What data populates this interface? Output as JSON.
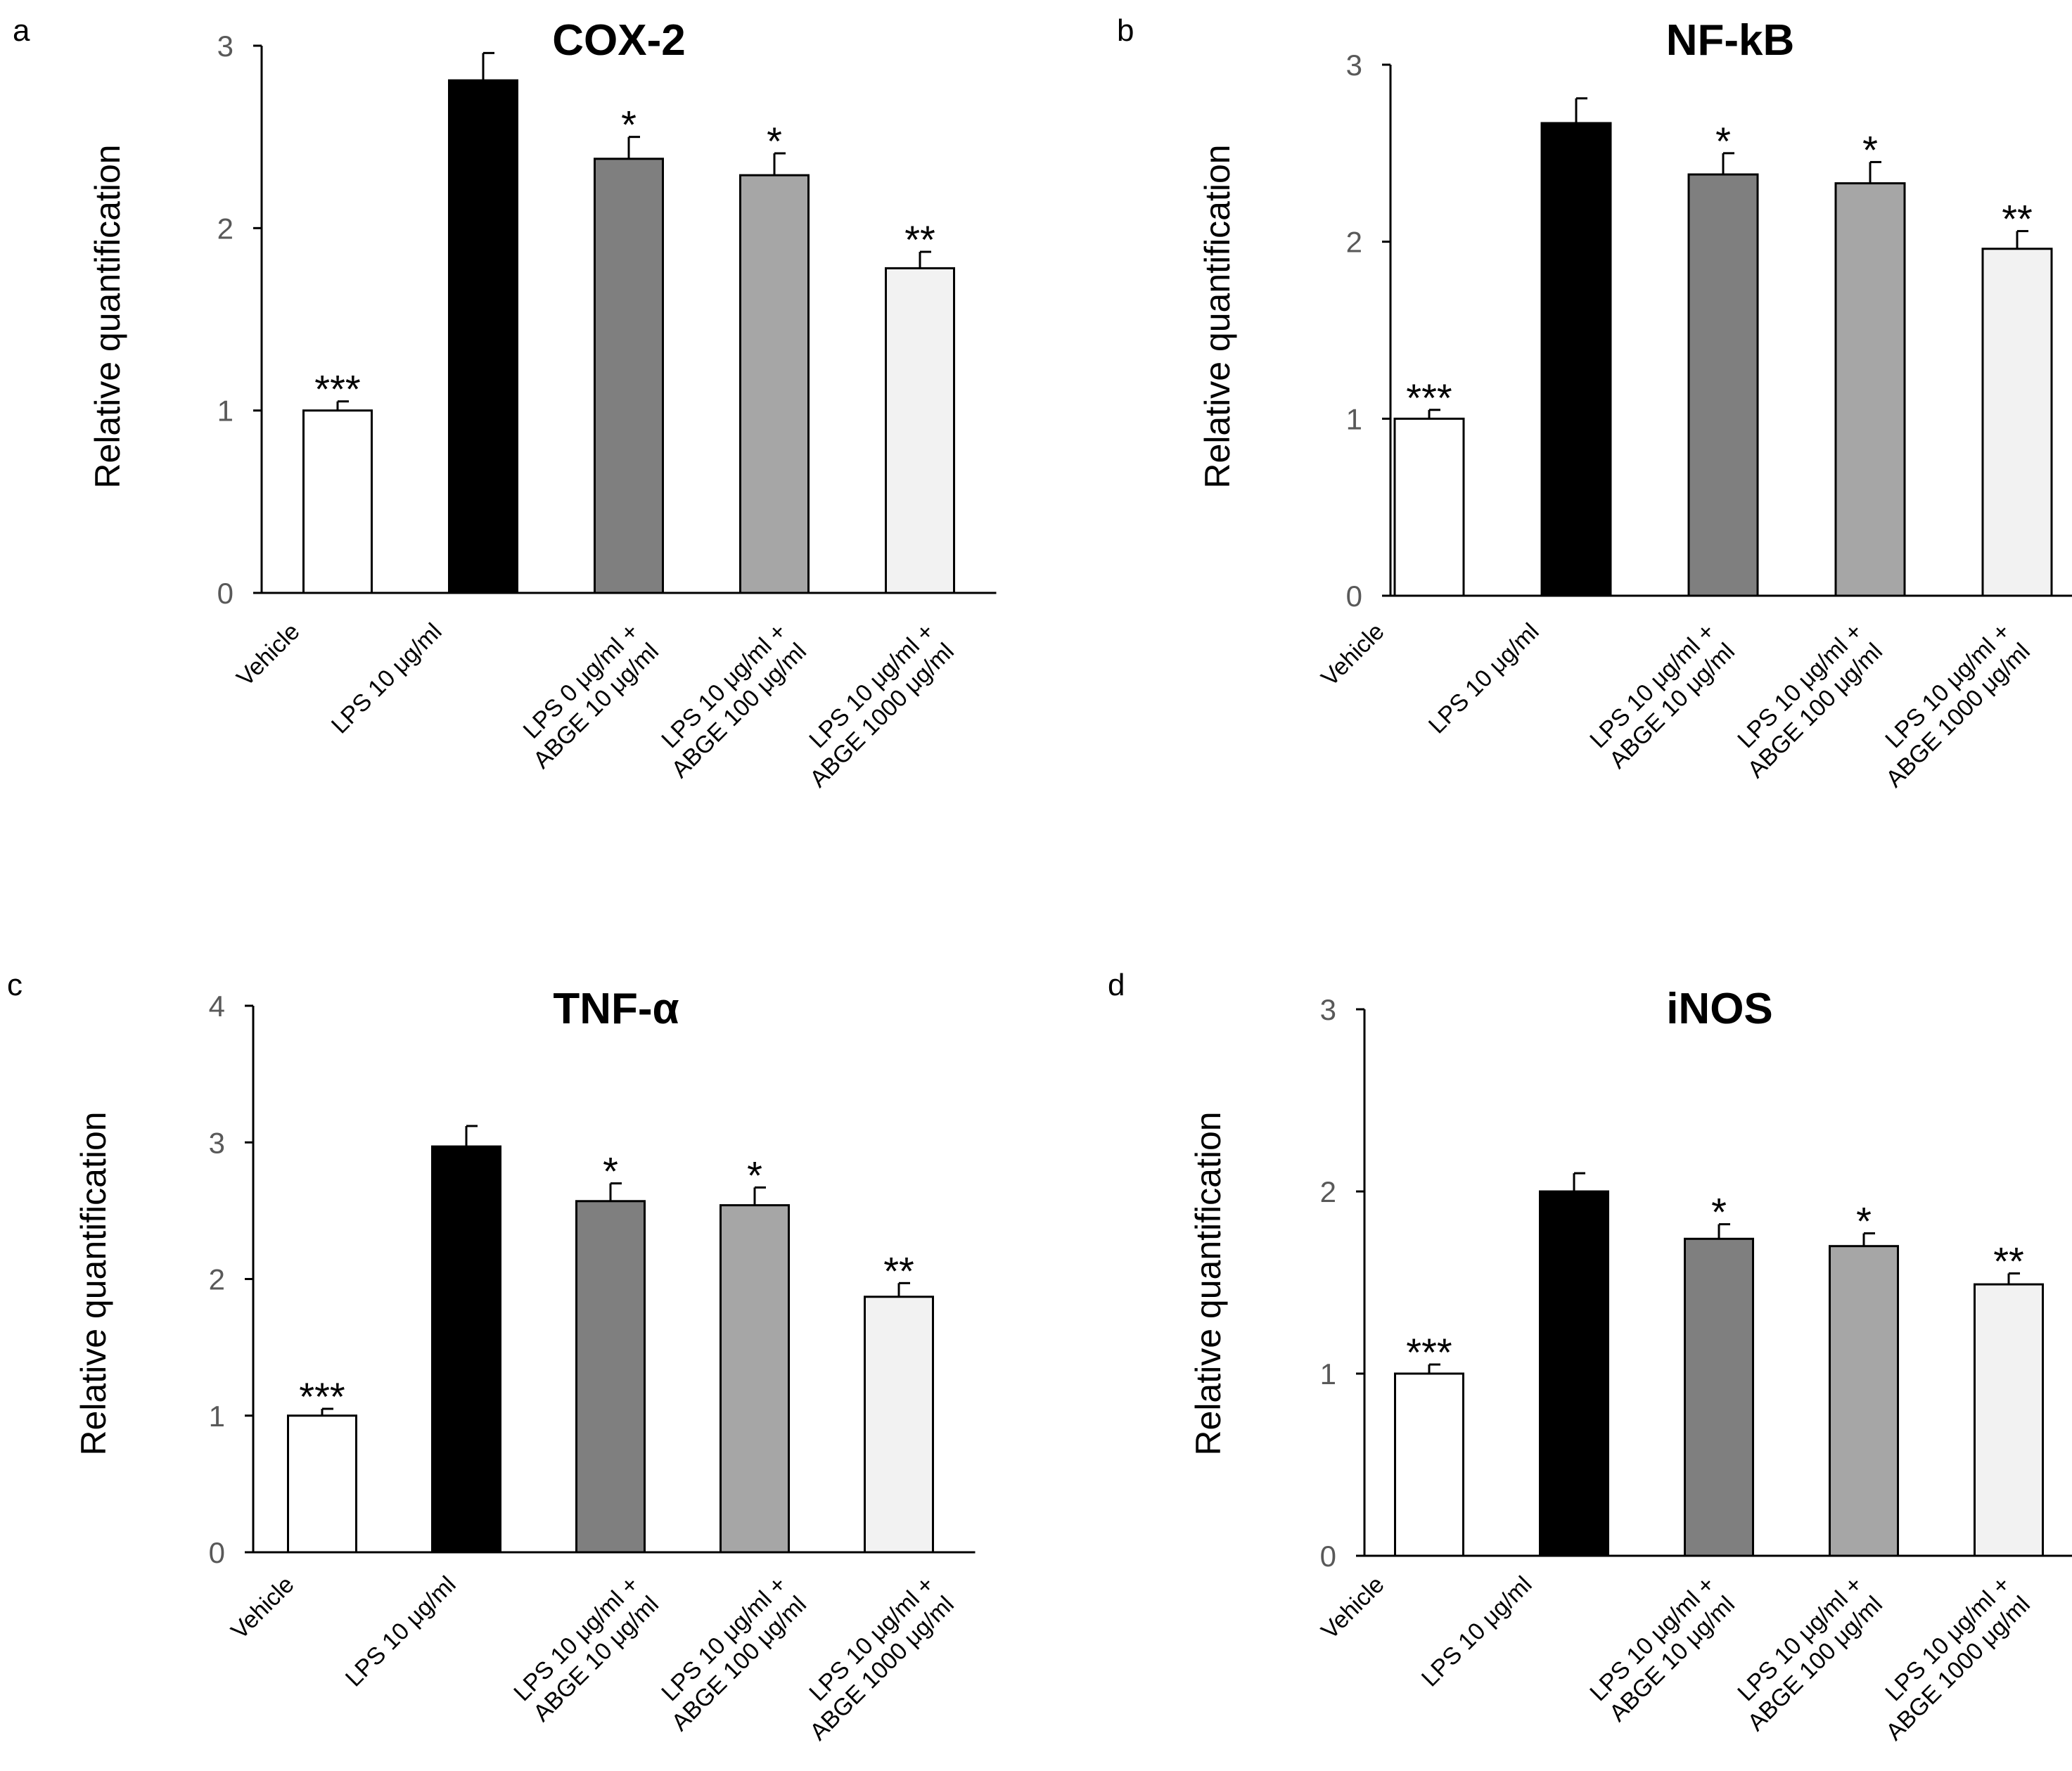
{
  "chart_data": [
    {
      "panel": "a",
      "type": "bar",
      "title": "COX-2",
      "ylabel": "Relative quantification",
      "xlabel": "",
      "ylim": [
        0,
        3
      ],
      "yticks": [
        0,
        1,
        2,
        3
      ],
      "categories": [
        [
          "Vehicle"
        ],
        [
          "LPS 10 μg/ml"
        ],
        [
          "LPS 0 μg/ml +",
          "ABGE 10 μg/ml"
        ],
        [
          "LPS 10 μg/ml +",
          "ABGE 100 μg/ml"
        ],
        [
          "LPS 10 μg/ml +",
          "ABGE 1000 μg/ml"
        ]
      ],
      "values": [
        1.0,
        2.81,
        2.38,
        2.29,
        1.78
      ],
      "errors": [
        0.05,
        0.15,
        0.12,
        0.12,
        0.09
      ],
      "significance": [
        "***",
        "",
        "*",
        "*",
        "**"
      ],
      "bar_colors": [
        "#ffffff",
        "#000000",
        "#7f7f7f",
        "#a6a6a6",
        "#f2f2f2"
      ]
    },
    {
      "panel": "b",
      "type": "bar",
      "title": "NF-kB",
      "ylabel": "Relative quantification",
      "xlabel": "",
      "ylim": [
        0,
        3
      ],
      "yticks": [
        0,
        1,
        2,
        3
      ],
      "categories": [
        [
          "Vehicle"
        ],
        [
          "LPS 10 μg/ml"
        ],
        [
          "LPS 10 μg/ml +",
          "ABGE 10 μg/ml"
        ],
        [
          "LPS 10 μg/ml +",
          "ABGE 100 μg/ml"
        ],
        [
          "LPS 10 μg/ml +",
          "ABGE 1000 μg/ml"
        ]
      ],
      "values": [
        1.0,
        2.67,
        2.38,
        2.33,
        1.96
      ],
      "errors": [
        0.05,
        0.14,
        0.12,
        0.12,
        0.1
      ],
      "significance": [
        "***",
        "",
        "*",
        "*",
        "**"
      ],
      "bar_colors": [
        "#ffffff",
        "#000000",
        "#7f7f7f",
        "#a6a6a6",
        "#f2f2f2"
      ]
    },
    {
      "panel": "c",
      "type": "bar",
      "title": "TNF-α",
      "ylabel": "Relative quantification",
      "xlabel": "",
      "ylim": [
        0,
        4
      ],
      "yticks": [
        0,
        1,
        2,
        3,
        4
      ],
      "categories": [
        [
          "Vehicle"
        ],
        [
          "LPS 10 μg/ml"
        ],
        [
          "LPS 10 μg/ml +",
          "ABGE 10 μg/ml"
        ],
        [
          "LPS 10 μg/ml +",
          "ABGE 100 μg/ml"
        ],
        [
          "LPS 10 μg/ml +",
          "ABGE 1000 μg/ml"
        ]
      ],
      "values": [
        1.0,
        2.97,
        2.57,
        2.54,
        1.87
      ],
      "errors": [
        0.05,
        0.15,
        0.13,
        0.13,
        0.1
      ],
      "significance": [
        "***",
        "",
        "*",
        "*",
        "**"
      ],
      "bar_colors": [
        "#ffffff",
        "#000000",
        "#7f7f7f",
        "#a6a6a6",
        "#f2f2f2"
      ]
    },
    {
      "panel": "d",
      "type": "bar",
      "title": "iNOS",
      "ylabel": "Relative quantification",
      "xlabel": "",
      "ylim": [
        0,
        3
      ],
      "yticks": [
        0,
        1,
        2,
        3
      ],
      "categories": [
        [
          "Vehicle"
        ],
        [
          "LPS 10 μg/ml"
        ],
        [
          "LPS 10 μg/ml +",
          "ABGE 10 μg/ml"
        ],
        [
          "LPS 10 μg/ml +",
          "ABGE 100 μg/ml"
        ],
        [
          "LPS 10 μg/ml +",
          "ABGE 1000 μg/ml"
        ]
      ],
      "values": [
        1.0,
        2.0,
        1.74,
        1.7,
        1.49
      ],
      "errors": [
        0.05,
        0.1,
        0.08,
        0.07,
        0.06
      ],
      "significance": [
        "***",
        "",
        "*",
        "*",
        "**"
      ],
      "bar_colors": [
        "#ffffff",
        "#000000",
        "#7f7f7f",
        "#a6a6a6",
        "#f2f2f2"
      ]
    }
  ]
}
